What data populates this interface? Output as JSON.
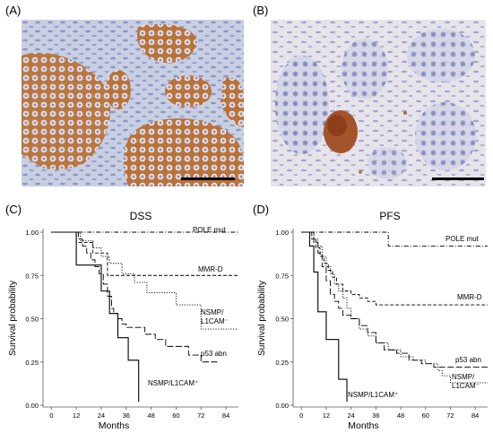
{
  "panels": {
    "a_label": "(A)",
    "b_label": "(B)",
    "c_label": "(C)",
    "d_label": "(D)"
  },
  "chart_data": [
    {
      "type": "line",
      "chart_subtype": "kaplan-meier",
      "title": "DSS",
      "xlabel": "Months",
      "ylabel": "Survival probability",
      "xticks": [
        "0",
        "12",
        "24",
        "36",
        "48",
        "60",
        "72",
        "84"
      ],
      "yticks": [
        "0.00",
        "0.25",
        "0.50",
        "0.75",
        "1.00"
      ],
      "xlim": [
        -4,
        90
      ],
      "ylim": [
        0,
        1
      ],
      "grid": false,
      "series": [
        {
          "name": "POLE mut",
          "dash": "dashdot",
          "x": [
            0,
            90
          ],
          "y": [
            1.0,
            1.0
          ]
        },
        {
          "name": "MMR-D",
          "dash": "dashed",
          "x": [
            0,
            11,
            12,
            16,
            20,
            24,
            27,
            90
          ],
          "y": [
            1.0,
            1.0,
            0.94,
            0.94,
            0.88,
            0.88,
            0.75,
            0.75
          ]
        },
        {
          "name": "NSMP/\nL1CAM⁻",
          "dash": "dotted",
          "x": [
            0,
            12,
            14,
            17,
            20,
            24,
            28,
            34,
            40,
            46,
            54,
            60,
            66,
            72,
            90
          ],
          "y": [
            1.0,
            1.0,
            0.95,
            0.95,
            0.91,
            0.86,
            0.82,
            0.76,
            0.71,
            0.65,
            0.65,
            0.58,
            0.58,
            0.44,
            0.44
          ]
        },
        {
          "name": "p53 abn",
          "dash": "longdash",
          "x": [
            0,
            11,
            13,
            15,
            17,
            19,
            21,
            23,
            25,
            27,
            29,
            30,
            32,
            34,
            36,
            40,
            45,
            50,
            55,
            60,
            66,
            72,
            80
          ],
          "y": [
            1.0,
            1.0,
            0.96,
            0.92,
            0.88,
            0.84,
            0.8,
            0.76,
            0.7,
            0.63,
            0.56,
            0.53,
            0.5,
            0.47,
            0.45,
            0.45,
            0.41,
            0.38,
            0.34,
            0.34,
            0.29,
            0.25,
            0.25
          ]
        },
        {
          "name": "NSMP/L1CAM⁺",
          "dash": "solid",
          "x": [
            0,
            12,
            12,
            24,
            24,
            28,
            28,
            32,
            32,
            37,
            37,
            42,
            42
          ],
          "y": [
            1.0,
            1.0,
            0.81,
            0.81,
            0.66,
            0.66,
            0.53,
            0.53,
            0.39,
            0.39,
            0.26,
            0.26,
            0.02
          ]
        }
      ]
    },
    {
      "type": "line",
      "chart_subtype": "kaplan-meier",
      "title": "PFS",
      "xlabel": "Months",
      "ylabel": "Survival probability",
      "xticks": [
        "0",
        "12",
        "24",
        "36",
        "48",
        "60",
        "72",
        "84"
      ],
      "yticks": [
        "0.00",
        "0.25",
        "0.50",
        "0.75",
        "1.00"
      ],
      "xlim": [
        -4,
        90
      ],
      "ylim": [
        0,
        1
      ],
      "grid": false,
      "series": [
        {
          "name": "POLE mut",
          "dash": "dashdot",
          "x": [
            0,
            40,
            42,
            90
          ],
          "y": [
            1.0,
            1.0,
            0.92,
            0.92
          ]
        },
        {
          "name": "MMR-D",
          "dash": "dashed",
          "x": [
            0,
            3,
            5,
            7,
            9,
            11,
            13,
            15,
            17,
            20,
            24,
            28,
            32,
            36,
            40,
            46,
            90
          ],
          "y": [
            1.0,
            1.0,
            0.96,
            0.91,
            0.86,
            0.82,
            0.78,
            0.74,
            0.7,
            0.66,
            0.64,
            0.62,
            0.6,
            0.58,
            0.58,
            0.58,
            0.58
          ]
        },
        {
          "name": "NSMP/\nL1CAM⁻",
          "dash": "dotted",
          "x": [
            0,
            4,
            6,
            8,
            10,
            12,
            14,
            16,
            18,
            20,
            22,
            24,
            28,
            32,
            36,
            42,
            48,
            54,
            60,
            64,
            66,
            68,
            72,
            90
          ],
          "y": [
            1.0,
            1.0,
            0.96,
            0.92,
            0.86,
            0.8,
            0.76,
            0.7,
            0.66,
            0.62,
            0.56,
            0.5,
            0.44,
            0.4,
            0.36,
            0.32,
            0.28,
            0.26,
            0.24,
            0.24,
            0.2,
            0.17,
            0.13,
            0.13
          ]
        },
        {
          "name": "p53 abn",
          "dash": "longdash",
          "x": [
            0,
            4,
            6,
            8,
            10,
            12,
            14,
            16,
            18,
            20,
            24,
            28,
            32,
            36,
            40,
            46,
            52,
            58,
            64,
            72,
            90
          ],
          "y": [
            1.0,
            1.0,
            0.94,
            0.88,
            0.8,
            0.72,
            0.64,
            0.6,
            0.56,
            0.52,
            0.5,
            0.46,
            0.42,
            0.36,
            0.32,
            0.3,
            0.26,
            0.24,
            0.22,
            0.22,
            0.22
          ]
        },
        {
          "name": "NSMP/L1CAM⁺",
          "dash": "solid",
          "x": [
            0,
            4,
            4,
            6,
            6,
            8,
            8,
            12,
            12,
            18,
            18,
            22,
            22
          ],
          "y": [
            1.0,
            1.0,
            0.92,
            0.92,
            0.77,
            0.77,
            0.54,
            0.54,
            0.38,
            0.38,
            0.15,
            0.15,
            0.02
          ]
        }
      ]
    }
  ]
}
